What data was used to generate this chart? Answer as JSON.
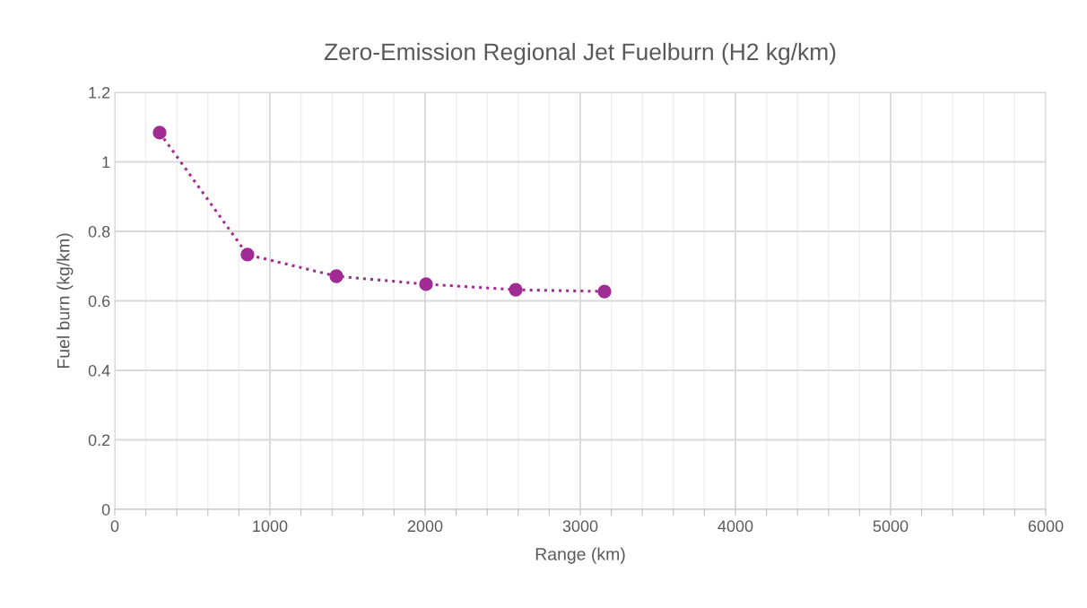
{
  "chart_data": {
    "type": "line",
    "title": "Zero-Emission Regional Jet Fuelburn (H2 kg/km)",
    "xlabel": "Range (km)",
    "ylabel": "Fuel burn (kg/km)",
    "x": [
      289,
      855,
      1428,
      2006,
      2584,
      3156
    ],
    "series": [
      {
        "color": "#a02b93",
        "values": [
          1.084,
          0.733,
          0.671,
          0.648,
          0.632,
          0.627
        ]
      }
    ],
    "marker": "circle",
    "line_style": "dotted",
    "xlim": [
      0,
      6000
    ],
    "ylim": [
      0,
      1.2
    ],
    "xticks": [
      0,
      {
        "value": 200,
        "label": null
      },
      {
        "value": 400,
        "label": null
      },
      {
        "value": 600,
        "label": null
      },
      {
        "value": 800,
        "label": null
      },
      1000,
      {
        "value": 1200,
        "label": null
      },
      {
        "value": 1400,
        "label": null
      },
      {
        "value": 1600,
        "label": null
      },
      {
        "value": 1800,
        "label": null
      },
      2000,
      {
        "value": 2200,
        "label": null
      },
      {
        "value": 2400,
        "label": null
      },
      {
        "value": 2600,
        "label": null
      },
      {
        "value": 2800,
        "label": null
      },
      3000,
      {
        "value": 3200,
        "label": null
      },
      {
        "value": 3400,
        "label": null
      },
      {
        "value": 3600,
        "label": null
      },
      {
        "value": 3800,
        "label": null
      },
      4000,
      {
        "value": 4200,
        "label": null
      },
      {
        "value": 4400,
        "label": null
      },
      {
        "value": 4600,
        "label": null
      },
      {
        "value": 4800,
        "label": null
      },
      5000,
      {
        "value": 5200,
        "label": null
      },
      {
        "value": 5400,
        "label": null
      },
      {
        "value": 5600,
        "label": null
      },
      {
        "value": 5800,
        "label": null
      },
      6000
    ],
    "yticks": [
      0,
      0.2,
      0.4,
      0.6,
      0.8,
      1,
      1.2
    ],
    "grid": true,
    "legend": false
  }
}
